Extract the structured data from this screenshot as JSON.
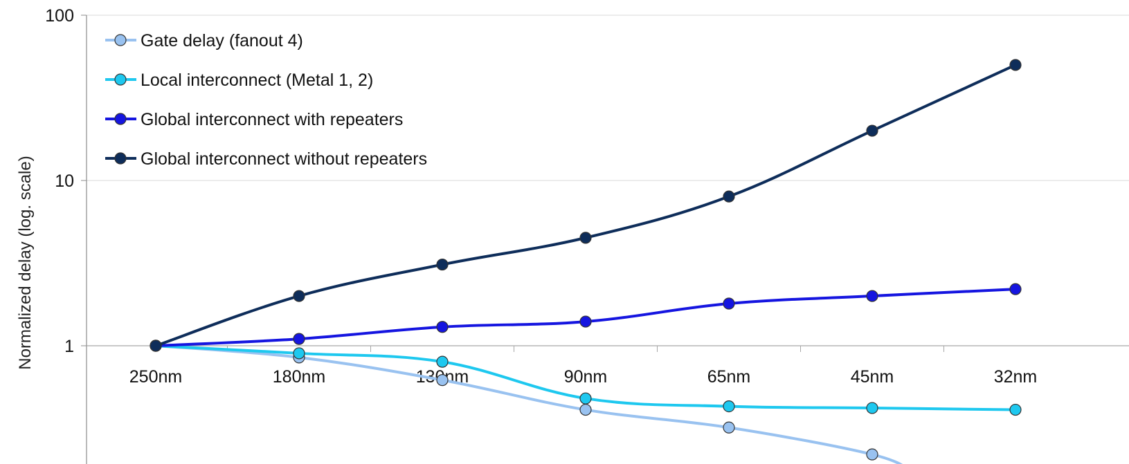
{
  "chart_data": {
    "type": "line",
    "title": "",
    "xlabel": "",
    "ylabel": "Normalized delay (log. scale)",
    "y_scale": "log",
    "ylim": [
      0.25,
      100
    ],
    "y_ticks": [
      1,
      10,
      100
    ],
    "y_tick_labels": [
      "1",
      "10",
      "100"
    ],
    "grid": true,
    "legend_position": "top-left",
    "categories": [
      "250nm",
      "180nm",
      "130nm",
      "90nm",
      "65nm",
      "45nm",
      "32nm"
    ],
    "series": [
      {
        "name": "Gate delay (fanout 4)",
        "color": "#99c2f0",
        "values": [
          1.0,
          0.85,
          0.62,
          0.41,
          0.32,
          0.22,
          null
        ]
      },
      {
        "name": "Local interconnect (Metal 1, 2)",
        "color": "#1ec8ef",
        "values": [
          1.0,
          0.9,
          0.8,
          0.48,
          0.43,
          0.42,
          0.41
        ]
      },
      {
        "name": "Global interconnect with repeaters",
        "color": "#1515e0",
        "values": [
          1.0,
          1.1,
          1.3,
          1.4,
          1.8,
          2.0,
          2.2
        ]
      },
      {
        "name": "Global interconnect without repeaters",
        "color": "#0e2d5a",
        "values": [
          1.0,
          2.0,
          3.1,
          4.5,
          8.0,
          20,
          50
        ]
      }
    ]
  }
}
